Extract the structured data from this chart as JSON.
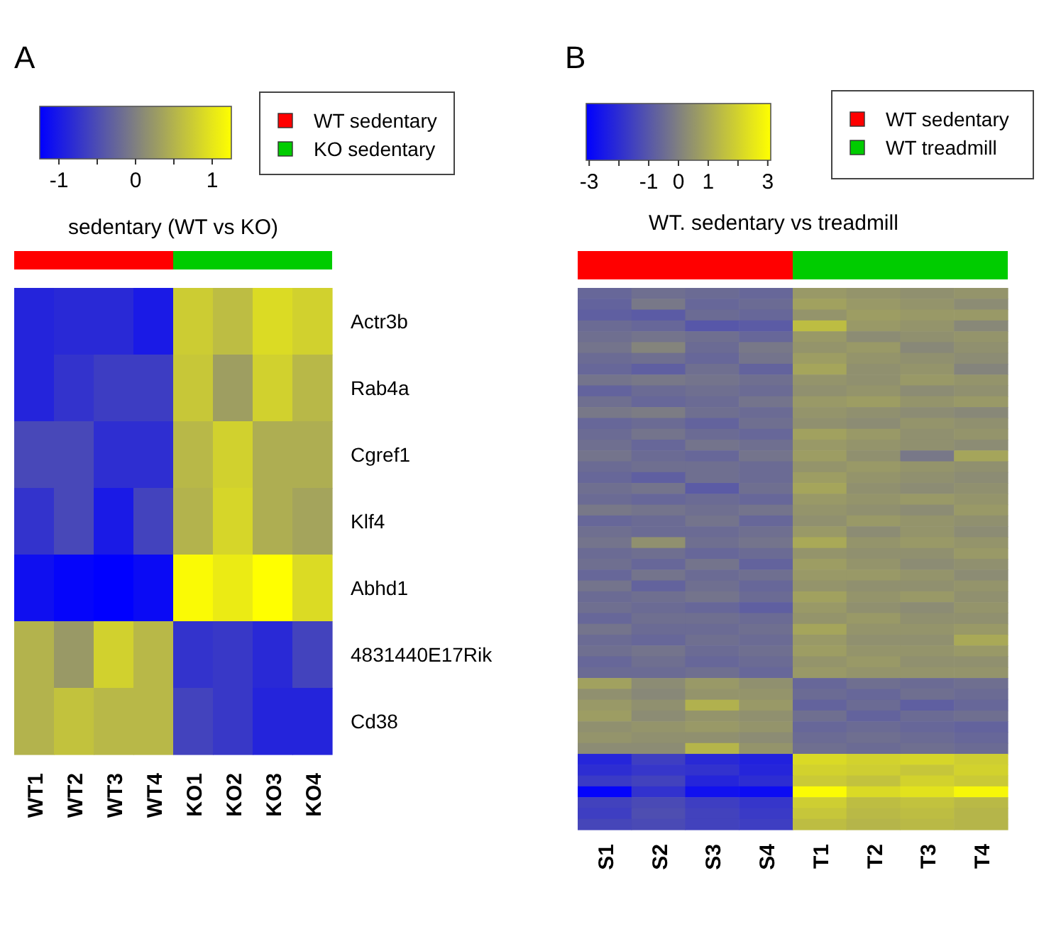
{
  "chart_data": [
    {
      "type": "heatmap",
      "title": "sedentary (WT vs KO)",
      "annotations": [
        "A",
        "WT sedentary",
        "KO sedentary"
      ],
      "categories": [
        "WT1",
        "WT2",
        "WT3",
        "WT4",
        "KO1",
        "KO2",
        "KO3",
        "KO4"
      ],
      "y_categories": [
        "Actr3b",
        "Rab4a",
        "Cgref1",
        "Klf4",
        "Abhd1",
        "4831440E17Rik",
        "Cd38"
      ],
      "colors": [
        "#0000ff",
        "#808080",
        "#ffff00"
      ],
      "clim": [
        -1.25,
        1.25
      ],
      "cticks": [
        -1,
        {
          "value": -0.5,
          "label": null
        },
        0,
        {
          "value": 0.5,
          "label": null
        },
        1
      ],
      "cells": [
        [
          -0.9,
          -0.85,
          -0.85,
          -1.0,
          0.75,
          0.6,
          0.9,
          0.8
        ],
        [
          -0.9,
          -0.75,
          -0.65,
          -0.65,
          0.7,
          0.3,
          0.8,
          0.55
        ],
        [
          -0.55,
          -0.55,
          -0.8,
          -0.8,
          0.55,
          0.8,
          0.45,
          0.45
        ],
        [
          -0.75,
          -0.55,
          -1.0,
          -0.6,
          0.5,
          0.85,
          0.45,
          0.35
        ],
        [
          -1.1,
          -1.2,
          -1.25,
          -1.15,
          1.2,
          1.05,
          1.25,
          0.9
        ],
        [
          0.5,
          0.25,
          0.8,
          0.55,
          -0.75,
          -0.7,
          -0.85,
          -0.6
        ],
        [
          0.5,
          0.65,
          0.55,
          0.55,
          -0.6,
          -0.7,
          -0.9,
          -0.9
        ]
      ]
    },
    {
      "type": "heatmap",
      "title": "WT. sedentary vs treadmill",
      "annotations": [
        "B",
        "WT sedentary",
        "WT treadmill"
      ],
      "categories": [
        "S1",
        "S2",
        "S3",
        "S4",
        "T1",
        "T2",
        "T3",
        "T4"
      ],
      "y_categories": [
        null,
        null,
        null,
        null,
        null,
        null,
        null,
        null,
        null,
        null,
        null,
        null,
        null,
        null,
        null,
        null,
        null,
        null,
        null,
        null,
        null,
        null,
        null,
        null,
        null,
        null,
        null,
        null,
        null,
        null,
        null,
        null,
        null,
        null,
        null,
        null,
        null,
        null,
        null,
        null,
        null,
        null,
        null,
        null,
        null,
        null,
        null,
        null,
        null,
        null
      ],
      "colors": [
        "#0000ff",
        "#808080",
        "#ffff00"
      ],
      "clim": [
        -3.1,
        3.1
      ],
      "cticks": [
        -3,
        {
          "value": -2,
          "label": null
        },
        -1,
        0,
        1,
        {
          "value": 2,
          "label": null
        },
        3
      ],
      "cells": [
        [
          -0.6,
          -0.4,
          -0.5,
          -0.6,
          0.6,
          0.5,
          0.4,
          0.5
        ],
        [
          -0.7,
          -0.2,
          -0.6,
          -0.5,
          0.8,
          0.6,
          0.5,
          0.3
        ],
        [
          -0.8,
          -0.9,
          -0.5,
          -0.6,
          0.5,
          0.7,
          0.6,
          0.6
        ],
        [
          -0.5,
          -0.6,
          -1.0,
          -0.9,
          1.5,
          0.6,
          0.5,
          0.2
        ],
        [
          -0.4,
          -0.3,
          -0.4,
          -0.6,
          0.6,
          0.3,
          0.4,
          0.5
        ],
        [
          -0.3,
          0.1,
          -0.5,
          -0.2,
          0.5,
          0.6,
          0.2,
          0.4
        ],
        [
          -0.5,
          -0.4,
          -0.6,
          -0.3,
          0.7,
          0.5,
          0.4,
          0.3
        ],
        [
          -0.6,
          -0.8,
          -0.4,
          -0.7,
          0.9,
          0.4,
          0.5,
          0.1
        ],
        [
          -0.3,
          -0.2,
          -0.3,
          -0.4,
          0.5,
          0.4,
          0.6,
          0.5
        ],
        [
          -0.7,
          -0.5,
          -0.4,
          -0.5,
          0.4,
          0.5,
          0.3,
          0.4
        ],
        [
          -0.4,
          -0.6,
          -0.5,
          -0.3,
          0.6,
          0.7,
          0.5,
          0.6
        ],
        [
          -0.2,
          -0.1,
          -0.4,
          -0.5,
          0.5,
          0.4,
          0.3,
          0.2
        ],
        [
          -0.6,
          -0.5,
          -0.7,
          -0.4,
          0.4,
          0.3,
          0.5,
          0.4
        ],
        [
          -0.5,
          -0.3,
          -0.5,
          -0.6,
          0.8,
          0.6,
          0.4,
          0.5
        ],
        [
          -0.4,
          -0.6,
          -0.3,
          -0.4,
          0.6,
          0.5,
          0.4,
          0.3
        ],
        [
          -0.3,
          -0.5,
          -0.6,
          -0.3,
          0.7,
          0.4,
          -0.2,
          0.9
        ],
        [
          -0.5,
          -0.4,
          -0.4,
          -0.5,
          0.5,
          0.6,
          0.5,
          0.4
        ],
        [
          -0.6,
          -0.8,
          -0.4,
          -0.5,
          0.7,
          0.5,
          0.4,
          0.3
        ],
        [
          -0.4,
          -0.3,
          -0.9,
          -0.4,
          0.9,
          0.4,
          0.3,
          0.4
        ],
        [
          -0.5,
          -0.6,
          -0.5,
          -0.6,
          0.6,
          0.5,
          0.6,
          0.5
        ],
        [
          -0.2,
          -0.3,
          -0.4,
          -0.3,
          0.5,
          0.4,
          0.3,
          0.6
        ],
        [
          -0.6,
          -0.5,
          -0.3,
          -0.6,
          0.4,
          0.6,
          0.5,
          0.4
        ],
        [
          -0.4,
          -0.5,
          -0.5,
          -0.4,
          0.6,
          0.3,
          0.5,
          0.3
        ],
        [
          -0.3,
          0.4,
          -0.4,
          -0.3,
          1.0,
          0.5,
          0.6,
          0.5
        ],
        [
          -0.5,
          -0.4,
          -0.6,
          -0.5,
          0.5,
          0.4,
          0.4,
          0.6
        ],
        [
          -0.4,
          -0.6,
          -0.3,
          -0.7,
          0.7,
          0.5,
          0.3,
          0.4
        ],
        [
          -0.6,
          -0.3,
          -0.5,
          -0.4,
          0.6,
          0.6,
          0.5,
          0.3
        ],
        [
          -0.3,
          -0.7,
          -0.4,
          -0.6,
          0.5,
          0.4,
          0.4,
          0.5
        ],
        [
          -0.5,
          -0.4,
          -0.3,
          -0.5,
          0.8,
          0.5,
          0.6,
          0.4
        ],
        [
          -0.4,
          -0.5,
          -0.6,
          -0.8,
          0.6,
          0.4,
          0.3,
          0.5
        ],
        [
          -0.6,
          -0.4,
          -0.4,
          -0.5,
          0.5,
          0.6,
          0.4,
          0.4
        ],
        [
          -0.3,
          -0.5,
          -0.5,
          -0.4,
          0.9,
          0.5,
          0.5,
          0.6
        ],
        [
          -0.5,
          -0.6,
          -0.4,
          -0.5,
          0.6,
          0.4,
          0.4,
          1.0
        ],
        [
          -0.4,
          -0.3,
          -0.5,
          -0.4,
          0.7,
          0.5,
          0.5,
          0.6
        ],
        [
          -0.6,
          -0.4,
          -0.6,
          -0.5,
          0.5,
          0.6,
          0.4,
          0.4
        ],
        [
          -0.5,
          -0.5,
          -0.4,
          -0.6,
          0.6,
          0.5,
          0.5,
          0.5
        ],
        [
          0.8,
          0.3,
          0.6,
          0.4,
          -0.6,
          -0.4,
          -0.5,
          -0.4
        ],
        [
          0.4,
          0.2,
          0.5,
          0.5,
          -0.5,
          -0.6,
          -0.4,
          -0.5
        ],
        [
          0.6,
          0.4,
          1.2,
          0.6,
          -0.7,
          -0.5,
          -0.8,
          -0.6
        ],
        [
          0.7,
          0.3,
          0.5,
          0.4,
          -0.4,
          -0.7,
          -0.5,
          -0.4
        ],
        [
          0.4,
          0.5,
          0.6,
          0.5,
          -0.6,
          -0.5,
          -0.6,
          -0.7
        ],
        [
          0.5,
          0.4,
          0.4,
          0.3,
          -0.5,
          -0.4,
          -0.5,
          -0.6
        ],
        [
          0.3,
          0.3,
          1.3,
          0.5,
          -0.4,
          -0.5,
          -0.4,
          -0.5
        ],
        [
          -2.2,
          -1.6,
          -2.1,
          -2.3,
          2.2,
          2.0,
          2.1,
          1.9
        ],
        [
          -2.0,
          -1.8,
          -1.9,
          -2.2,
          2.0,
          1.9,
          1.7,
          2.0
        ],
        [
          -1.7,
          -1.5,
          -2.2,
          -2.0,
          1.8,
          1.6,
          2.0,
          1.8
        ],
        [
          -3.0,
          -1.9,
          -2.7,
          -2.8,
          3.0,
          2.2,
          2.4,
          2.9
        ],
        [
          -1.5,
          -1.3,
          -1.6,
          -1.8,
          1.9,
          1.5,
          1.6,
          1.4
        ],
        [
          -1.6,
          -1.2,
          -1.5,
          -1.7,
          1.7,
          1.4,
          1.5,
          1.3
        ],
        [
          -1.4,
          -1.3,
          -1.5,
          -1.6,
          1.5,
          1.3,
          1.4,
          1.3
        ]
      ]
    }
  ]
}
